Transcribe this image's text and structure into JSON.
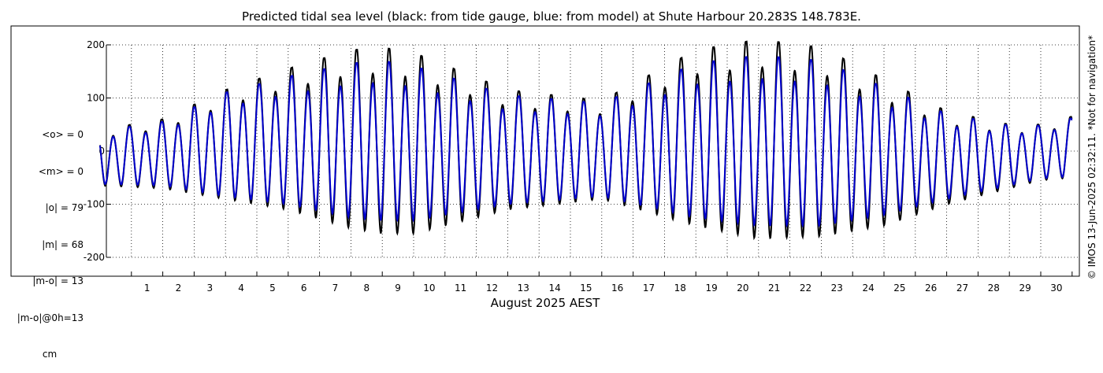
{
  "chart_data": {
    "type": "line",
    "title": "Predicted tidal sea level (black: from tide gauge, blue: from model) at Shute Harbour 20.283S 148.783E.",
    "xlabel": "August 2025 AEST",
    "ylabel": "",
    "x_ticks": [
      1,
      2,
      3,
      4,
      5,
      6,
      7,
      8,
      9,
      10,
      11,
      12,
      13,
      14,
      15,
      16,
      17,
      18,
      19,
      20,
      21,
      22,
      23,
      24,
      25,
      26,
      27,
      28,
      29,
      30
    ],
    "x_range_days": [
      -0.3,
      31.3
    ],
    "y_ticks": [
      -200,
      -100,
      0,
      100,
      200
    ],
    "ylim": [
      -240,
      240
    ],
    "grid": true,
    "series": [
      {
        "name": "from tide gauge",
        "color": "#000000",
        "amplitude_envelope_cm": {
          "day": [
            0,
            2,
            4,
            6,
            8,
            9,
            10,
            13,
            16,
            19,
            21,
            23,
            25,
            27,
            29,
            30,
            31
          ],
          "high": [
            40,
            60,
            115,
            155,
            190,
            195,
            185,
            115,
            95,
            190,
            210,
            195,
            135,
            75,
            50,
            50,
            65
          ],
          "low": [
            -65,
            -70,
            -90,
            -110,
            -145,
            -155,
            -155,
            -110,
            -90,
            -140,
            -165,
            -160,
            -140,
            -100,
            -70,
            -55,
            -50
          ]
        }
      },
      {
        "name": "from model",
        "color": "#0000cc",
        "amplitude_envelope_cm": {
          "day": [
            0,
            2,
            4,
            6,
            8,
            9,
            10,
            13,
            16,
            19,
            21,
            23,
            25,
            27,
            29,
            30,
            31
          ],
          "high": [
            38,
            55,
            110,
            140,
            165,
            170,
            160,
            105,
            90,
            165,
            180,
            170,
            120,
            70,
            48,
            48,
            62
          ],
          "low": [
            -62,
            -65,
            -85,
            -100,
            -125,
            -130,
            -130,
            -100,
            -85,
            -125,
            -140,
            -140,
            -120,
            -90,
            -65,
            -52,
            -48
          ]
        }
      }
    ]
  },
  "stats": {
    "lines": [
      "<o> = 0",
      "<m> = 0",
      "|o| = 79",
      "|m| = 68",
      "|m-o| = 13",
      "|m-o|@0h=13"
    ],
    "unit": "cm"
  },
  "copyright": "© IMOS 13-Jun-2025 02:32:11. *Not for navigation*",
  "colors": {
    "observed": "#000000",
    "model": "#0000cc",
    "grid": "#000000"
  }
}
